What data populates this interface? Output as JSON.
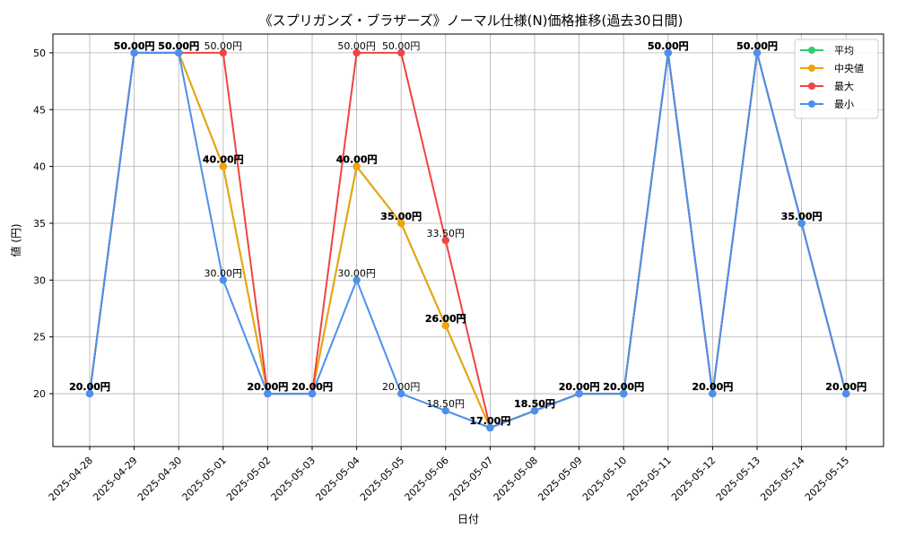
{
  "chart_data": {
    "type": "line",
    "title": "《スプリガンズ・ブラザーズ》ノーマル仕様(N)価格推移(過去30日間)",
    "xlabel": "日付",
    "ylabel": "値 (円)",
    "ylim": [
      15.35,
      51.65
    ],
    "yticks": [
      20,
      25,
      30,
      35,
      40,
      45,
      50
    ],
    "grid": true,
    "legend_position": "top-right",
    "x": [
      "2025-04-28",
      "2025-04-29",
      "2025-04-30",
      "2025-05-01",
      "2025-05-02",
      "2025-05-03",
      "2025-05-04",
      "2025-05-05",
      "2025-05-06",
      "2025-05-07",
      "2025-05-08",
      "2025-05-09",
      "2025-05-10",
      "2025-05-11",
      "2025-05-12",
      "2025-05-13",
      "2025-05-14",
      "2025-05-15"
    ],
    "series": [
      {
        "name": "平均",
        "color": "#2ecc71",
        "values": [
          20,
          50,
          50,
          40,
          20,
          20,
          40,
          35,
          26,
          17,
          18.5,
          20,
          20,
          50,
          20,
          50,
          35,
          20
        ]
      },
      {
        "name": "中央値",
        "color": "#f0a30a",
        "values": [
          20,
          50,
          50,
          40,
          20,
          20,
          40,
          35,
          26,
          17,
          18.5,
          20,
          20,
          50,
          20,
          50,
          35,
          20
        ]
      },
      {
        "name": "最大",
        "color": "#ef4444",
        "values": [
          20,
          50,
          50,
          50,
          20,
          20,
          50,
          50,
          33.5,
          17,
          18.5,
          20,
          20,
          50,
          20,
          50,
          35,
          20
        ]
      },
      {
        "name": "最小",
        "color": "#4a90f0",
        "values": [
          20,
          50,
          50,
          30,
          20,
          20,
          30,
          20,
          18.5,
          17,
          18.5,
          20,
          20,
          50,
          20,
          50,
          35,
          20
        ]
      }
    ],
    "data_labels": {
      "bold": [
        {
          "i": 0,
          "text": "20.00円"
        },
        {
          "i": 1,
          "text": "50.00円"
        },
        {
          "i": 2,
          "text": "50.00円"
        },
        {
          "i": 3,
          "text": "40.00円"
        },
        {
          "i": 4,
          "text": "20.00円"
        },
        {
          "i": 5,
          "text": "20.00円"
        },
        {
          "i": 6,
          "text": "40.00円"
        },
        {
          "i": 7,
          "text": "35.00円"
        },
        {
          "i": 8,
          "text": "26.00円"
        },
        {
          "i": 9,
          "text": "17.00円"
        },
        {
          "i": 10,
          "text": "18.50円"
        },
        {
          "i": 11,
          "text": "20.00円"
        },
        {
          "i": 12,
          "text": "20.00円"
        },
        {
          "i": 13,
          "text": "50.00円"
        },
        {
          "i": 14,
          "text": "20.00円"
        },
        {
          "i": 15,
          "text": "50.00円"
        },
        {
          "i": 16,
          "text": "35.00円"
        },
        {
          "i": 17,
          "text": "20.00円"
        }
      ],
      "max": [
        {
          "i": 3,
          "text": "50.00円"
        },
        {
          "i": 6,
          "text": "50.00円"
        },
        {
          "i": 7,
          "text": "50.00円"
        },
        {
          "i": 8,
          "text": "33.50円"
        }
      ],
      "min": [
        {
          "i": 3,
          "text": "30.00円"
        },
        {
          "i": 6,
          "text": "30.00円"
        },
        {
          "i": 7,
          "text": "20.00円"
        },
        {
          "i": 8,
          "text": "18.50円"
        }
      ]
    }
  }
}
